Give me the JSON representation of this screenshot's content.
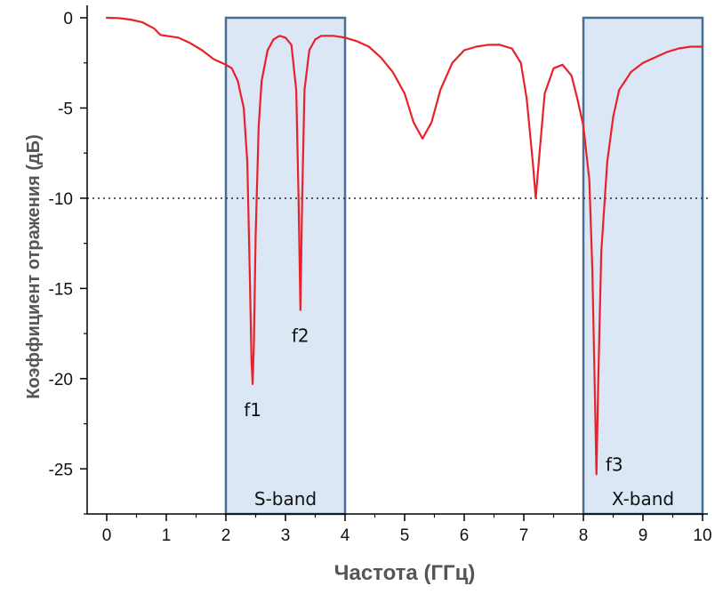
{
  "chart_data": {
    "type": "line",
    "xlabel": "Частота (ГГц)",
    "ylabel": "Коэффициент отражения (дБ)",
    "xlim": [
      0,
      10
    ],
    "ylim": [
      -27.5,
      0
    ],
    "xticks": [
      0,
      1,
      2,
      3,
      4,
      5,
      6,
      7,
      8,
      9,
      10
    ],
    "yticks": [
      0,
      -5,
      -10,
      -15,
      -20,
      -25
    ],
    "grid": false,
    "line_color": "#e8212b",
    "band_fill": "#dbe7f5",
    "band_stroke": "#4a6f95",
    "reference_line": {
      "y": -10,
      "style": "dotted"
    },
    "bands": [
      {
        "label": "S-band",
        "x0": 2,
        "x1": 4
      },
      {
        "label": "X-band",
        "x0": 8,
        "x1": 10
      }
    ],
    "annotations": [
      {
        "text": "f1",
        "x": 2.45,
        "y": -20.3
      },
      {
        "text": "f2",
        "x": 3.25,
        "y": -16.2
      },
      {
        "text": "f3",
        "x": 8.22,
        "y": -25.3
      }
    ],
    "series": [
      {
        "points": [
          [
            0,
            0
          ],
          [
            0.2,
            -0.02
          ],
          [
            0.4,
            -0.1
          ],
          [
            0.6,
            -0.25
          ],
          [
            0.8,
            -0.6
          ],
          [
            0.9,
            -0.95
          ],
          [
            1.0,
            -1.0
          ],
          [
            1.2,
            -1.1
          ],
          [
            1.4,
            -1.4
          ],
          [
            1.6,
            -1.8
          ],
          [
            1.8,
            -2.3
          ],
          [
            2.0,
            -2.6
          ],
          [
            2.1,
            -2.8
          ],
          [
            2.2,
            -3.5
          ],
          [
            2.3,
            -5.0
          ],
          [
            2.36,
            -8.0
          ],
          [
            2.4,
            -14.0
          ],
          [
            2.43,
            -19.0
          ],
          [
            2.45,
            -20.3
          ],
          [
            2.47,
            -18.0
          ],
          [
            2.5,
            -12.0
          ],
          [
            2.55,
            -6.0
          ],
          [
            2.6,
            -3.5
          ],
          [
            2.7,
            -1.8
          ],
          [
            2.8,
            -1.2
          ],
          [
            2.9,
            -1.0
          ],
          [
            3.0,
            -1.1
          ],
          [
            3.1,
            -1.5
          ],
          [
            3.18,
            -4.0
          ],
          [
            3.22,
            -10.0
          ],
          [
            3.25,
            -16.2
          ],
          [
            3.28,
            -10.0
          ],
          [
            3.32,
            -4.0
          ],
          [
            3.4,
            -1.8
          ],
          [
            3.5,
            -1.2
          ],
          [
            3.6,
            -1.0
          ],
          [
            3.7,
            -1.0
          ],
          [
            3.8,
            -1.0
          ],
          [
            4.0,
            -1.1
          ],
          [
            4.2,
            -1.3
          ],
          [
            4.4,
            -1.6
          ],
          [
            4.6,
            -2.2
          ],
          [
            4.8,
            -3.0
          ],
          [
            5.0,
            -4.2
          ],
          [
            5.15,
            -5.8
          ],
          [
            5.3,
            -6.7
          ],
          [
            5.45,
            -5.8
          ],
          [
            5.6,
            -4.0
          ],
          [
            5.8,
            -2.5
          ],
          [
            6.0,
            -1.8
          ],
          [
            6.2,
            -1.6
          ],
          [
            6.4,
            -1.5
          ],
          [
            6.6,
            -1.5
          ],
          [
            6.8,
            -1.7
          ],
          [
            6.95,
            -2.5
          ],
          [
            7.05,
            -4.5
          ],
          [
            7.15,
            -8.0
          ],
          [
            7.2,
            -10.0
          ],
          [
            7.25,
            -8.0
          ],
          [
            7.35,
            -4.2
          ],
          [
            7.5,
            -2.8
          ],
          [
            7.65,
            -2.6
          ],
          [
            7.8,
            -3.2
          ],
          [
            7.9,
            -4.5
          ],
          [
            8.0,
            -6.0
          ],
          [
            8.1,
            -9.0
          ],
          [
            8.15,
            -14.0
          ],
          [
            8.2,
            -22.0
          ],
          [
            8.22,
            -25.3
          ],
          [
            8.25,
            -20.0
          ],
          [
            8.3,
            -13.0
          ],
          [
            8.4,
            -8.0
          ],
          [
            8.5,
            -5.5
          ],
          [
            8.6,
            -4.0
          ],
          [
            8.8,
            -3.0
          ],
          [
            9.0,
            -2.5
          ],
          [
            9.2,
            -2.2
          ],
          [
            9.4,
            -1.9
          ],
          [
            9.6,
            -1.7
          ],
          [
            9.8,
            -1.6
          ],
          [
            10.0,
            -1.6
          ]
        ]
      }
    ]
  }
}
